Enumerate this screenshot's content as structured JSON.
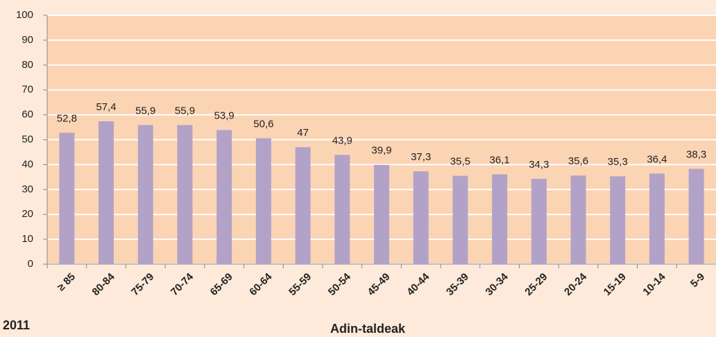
{
  "chart_data": {
    "type": "bar",
    "categories": [
      "≥ 85",
      "80-84",
      "75-79",
      "70-74",
      "65-69",
      "60-64",
      "55-59",
      "50-54",
      "45-49",
      "40-44",
      "35-39",
      "30-34",
      "25-29",
      "20-24",
      "15-19",
      "10-14",
      "5-9"
    ],
    "values": [
      52.8,
      57.4,
      55.9,
      55.9,
      53.9,
      50.6,
      47,
      43.9,
      39.9,
      37.3,
      35.5,
      36.1,
      34.3,
      35.6,
      35.3,
      36.4,
      38.3
    ],
    "value_labels": [
      "52,8",
      "57,4",
      "55,9",
      "55,9",
      "53,9",
      "50,6",
      "47",
      "43,9",
      "39,9",
      "37,3",
      "35,5",
      "36,1",
      "34,3",
      "35,6",
      "35,3",
      "36,4",
      "38,3"
    ],
    "color": "#b3a2c7",
    "ylim": [
      0,
      100
    ],
    "yticks": [
      0,
      10,
      20,
      30,
      40,
      50,
      60,
      70,
      80,
      90,
      100
    ],
    "grid": true,
    "xlabel": "Adin-taldeak",
    "annotation": "2011"
  }
}
